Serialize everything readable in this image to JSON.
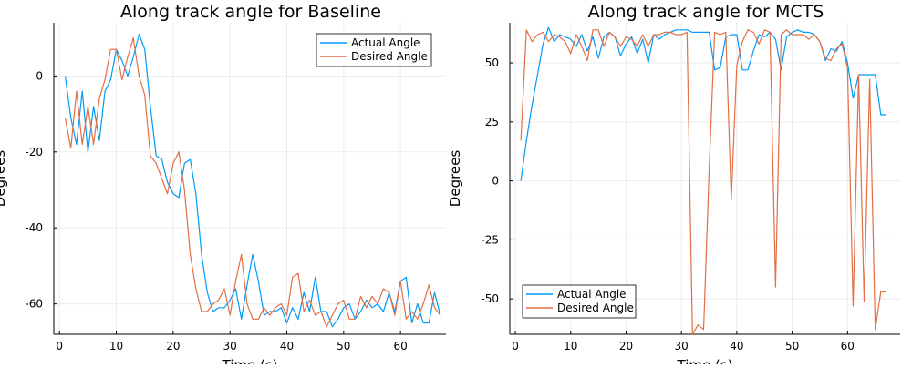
{
  "colors": {
    "actual": "#009AFA",
    "desired": "#E26F46",
    "grid": "#EBEBEB",
    "axis": "#000000"
  },
  "chart_data": [
    {
      "type": "line",
      "title": "Along track angle for Baseline",
      "xlabel": "Time (s)",
      "ylabel": "Degrees",
      "xlim": [
        -1,
        68
      ],
      "ylim": [
        -68,
        14
      ],
      "xticks": [
        0,
        10,
        20,
        30,
        40,
        50,
        60
      ],
      "yticks": [
        0,
        -20,
        -40,
        -60
      ],
      "grid": true,
      "legend": "top-right",
      "series": [
        {
          "name": "Actual Angle",
          "color": "#009AFA",
          "x": [
            1,
            2,
            3,
            4,
            5,
            6,
            7,
            8,
            9,
            10,
            11,
            12,
            13,
            14,
            15,
            16,
            17,
            18,
            19,
            20,
            21,
            22,
            23,
            24,
            25,
            26,
            27,
            28,
            29,
            30,
            31,
            32,
            33,
            34,
            35,
            36,
            37,
            38,
            39,
            40,
            41,
            42,
            43,
            44,
            45,
            46,
            47,
            48,
            49,
            50,
            51,
            52,
            53,
            54,
            55,
            56,
            57,
            58,
            59,
            60,
            61,
            62,
            63,
            64,
            65,
            66,
            67
          ],
          "y": [
            0,
            -11,
            -18,
            -4,
            -20,
            -8,
            -17,
            -4,
            -1,
            7,
            4,
            0,
            5,
            11,
            7,
            -8,
            -21,
            -22,
            -28,
            -31,
            -32,
            -23,
            -22,
            -31,
            -47,
            -57,
            -62,
            -61,
            -61,
            -59,
            -56,
            -64,
            -55,
            -47,
            -54,
            -63,
            -62,
            -62,
            -61,
            -65,
            -61,
            -64,
            -57,
            -62,
            -53,
            -62,
            -62,
            -66,
            -64,
            -61,
            -60,
            -64,
            -62,
            -59,
            -61,
            -60,
            -62,
            -57,
            -62,
            -54,
            -53,
            -65,
            -60,
            -65,
            -65,
            -57,
            -63
          ]
        },
        {
          "name": "Desired Angle",
          "color": "#E26F46",
          "x": [
            1,
            2,
            3,
            4,
            5,
            6,
            7,
            8,
            9,
            10,
            11,
            12,
            13,
            14,
            15,
            16,
            17,
            18,
            19,
            20,
            21,
            22,
            23,
            24,
            25,
            26,
            27,
            28,
            29,
            30,
            31,
            32,
            33,
            34,
            35,
            36,
            37,
            38,
            39,
            40,
            41,
            42,
            43,
            44,
            45,
            46,
            47,
            48,
            49,
            50,
            51,
            52,
            53,
            54,
            55,
            56,
            57,
            58,
            59,
            60,
            61,
            62,
            63,
            64,
            65,
            66,
            67
          ],
          "y": [
            -11,
            -19,
            -4,
            -18,
            -8,
            -18,
            -6,
            -1,
            7,
            7,
            -1,
            5,
            10,
            0,
            -5,
            -21,
            -23,
            -27,
            -31,
            -23,
            -20,
            -30,
            -47,
            -56,
            -62,
            -62,
            -60,
            -59,
            -56,
            -63,
            -54,
            -47,
            -60,
            -64,
            -64,
            -61,
            -63,
            -61,
            -60,
            -63,
            -53,
            -52,
            -62,
            -59,
            -63,
            -62,
            -66,
            -63,
            -60,
            -59,
            -64,
            -64,
            -58,
            -61,
            -58,
            -60,
            -56,
            -57,
            -63,
            -54,
            -64,
            -62,
            -64,
            -60,
            -55,
            -61,
            -63
          ]
        }
      ]
    },
    {
      "type": "line",
      "title": "Along track angle for MCTS",
      "xlabel": "Time (s)",
      "ylabel": "Degrees",
      "xlim": [
        -1,
        69.5
      ],
      "ylim": [
        -65,
        67
      ],
      "xticks": [
        0,
        10,
        20,
        30,
        40,
        50,
        60
      ],
      "yticks": [
        50,
        25,
        0,
        -25,
        -50
      ],
      "grid": true,
      "legend": "bottom-left",
      "series": [
        {
          "name": "Actual Angle",
          "color": "#009AFA",
          "x": [
            1,
            2,
            3,
            4,
            5,
            6,
            7,
            8,
            9,
            10,
            11,
            12,
            13,
            14,
            15,
            16,
            17,
            18,
            19,
            20,
            21,
            22,
            23,
            24,
            25,
            26,
            27,
            28,
            29,
            30,
            31,
            32,
            33,
            34,
            35,
            36,
            37,
            38,
            39,
            40,
            41,
            42,
            43,
            44,
            45,
            46,
            47,
            48,
            49,
            50,
            51,
            52,
            53,
            54,
            55,
            56,
            57,
            58,
            59,
            60,
            61,
            62,
            63,
            64,
            65,
            66,
            67
          ],
          "y": [
            0,
            17,
            32,
            45,
            58,
            65,
            59,
            62,
            61,
            60,
            57,
            62,
            55,
            61,
            52,
            61,
            63,
            61,
            53,
            58,
            61,
            54,
            60,
            50,
            62,
            60,
            62,
            63,
            64,
            64,
            64,
            63,
            63,
            63,
            63,
            47,
            48,
            61,
            62,
            62,
            47,
            47,
            55,
            62,
            61,
            63,
            60,
            47,
            61,
            63,
            64,
            63,
            63,
            62,
            59,
            51,
            56,
            55,
            59,
            50,
            35,
            45,
            45,
            45,
            45,
            28,
            28
          ]
        },
        {
          "name": "Desired Angle",
          "color": "#E26F46",
          "x": [
            1,
            2,
            3,
            4,
            5,
            6,
            7,
            8,
            9,
            10,
            11,
            12,
            13,
            14,
            15,
            16,
            17,
            18,
            19,
            20,
            21,
            22,
            23,
            24,
            25,
            26,
            27,
            28,
            29,
            30,
            31,
            32,
            33,
            34,
            35,
            36,
            37,
            38,
            39,
            40,
            41,
            42,
            43,
            44,
            45,
            46,
            47,
            48,
            49,
            50,
            51,
            52,
            53,
            54,
            55,
            56,
            57,
            58,
            59,
            60,
            61,
            62,
            63,
            64,
            65,
            66,
            67
          ],
          "y": [
            17,
            64,
            59,
            62,
            63,
            59,
            62,
            61,
            59,
            54,
            62,
            57,
            51,
            64,
            64,
            57,
            63,
            61,
            57,
            61,
            60,
            57,
            62,
            57,
            62,
            62,
            63,
            63,
            62,
            62,
            63,
            -65,
            -61,
            -63,
            5,
            63,
            62,
            63,
            -8,
            49,
            59,
            64,
            63,
            58,
            64,
            63,
            -45,
            62,
            64,
            62,
            62,
            62,
            60,
            62,
            59,
            52,
            51,
            56,
            58,
            48,
            -53,
            45,
            -51,
            43,
            -63,
            -47,
            -47
          ]
        }
      ]
    }
  ]
}
